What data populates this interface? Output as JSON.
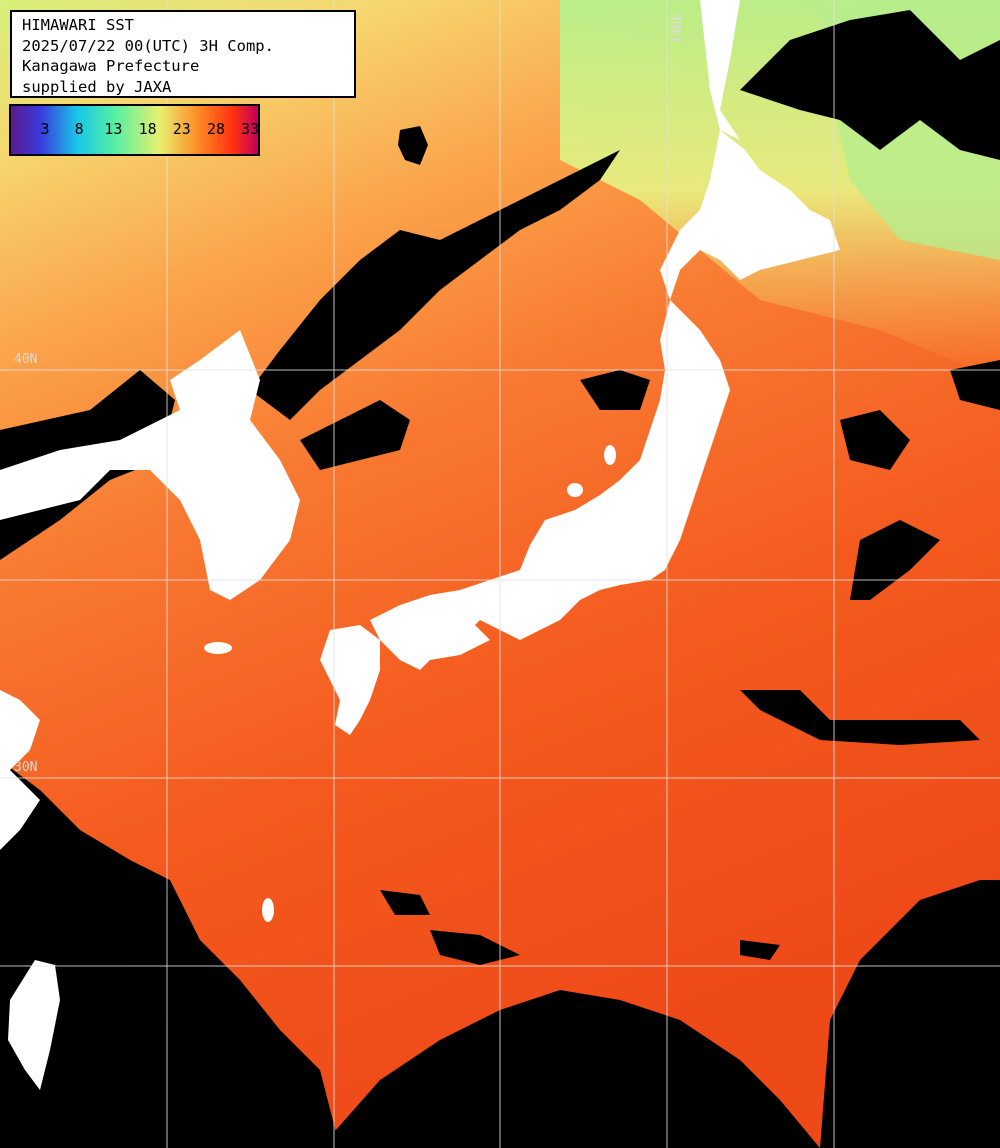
{
  "header": {
    "title": "HIMAWARI SST",
    "timestamp": "2025/07/22 00(UTC) 3H Comp.",
    "region": "Kanagawa Prefecture",
    "credit": "supplied by JAXA"
  },
  "colorbar": {
    "ticks": [
      "3",
      "8",
      "13",
      "18",
      "23",
      "28",
      "33"
    ],
    "colors": [
      "#5b1a8c",
      "#2a3cd8",
      "#18c8e8",
      "#5cf0a0",
      "#e8f070",
      "#ff8a24",
      "#ff3010",
      "#c00060"
    ]
  },
  "grid_labels": {
    "lat_40": "40N",
    "lat_30": "30N",
    "lon_140": "140E"
  },
  "map_colors": {
    "land": "#ffffff",
    "cloud_mask": "#000000",
    "warm_sea": "#f85a1c",
    "cool_sea": "#c8f07a",
    "grid": "#e0e0e0"
  }
}
